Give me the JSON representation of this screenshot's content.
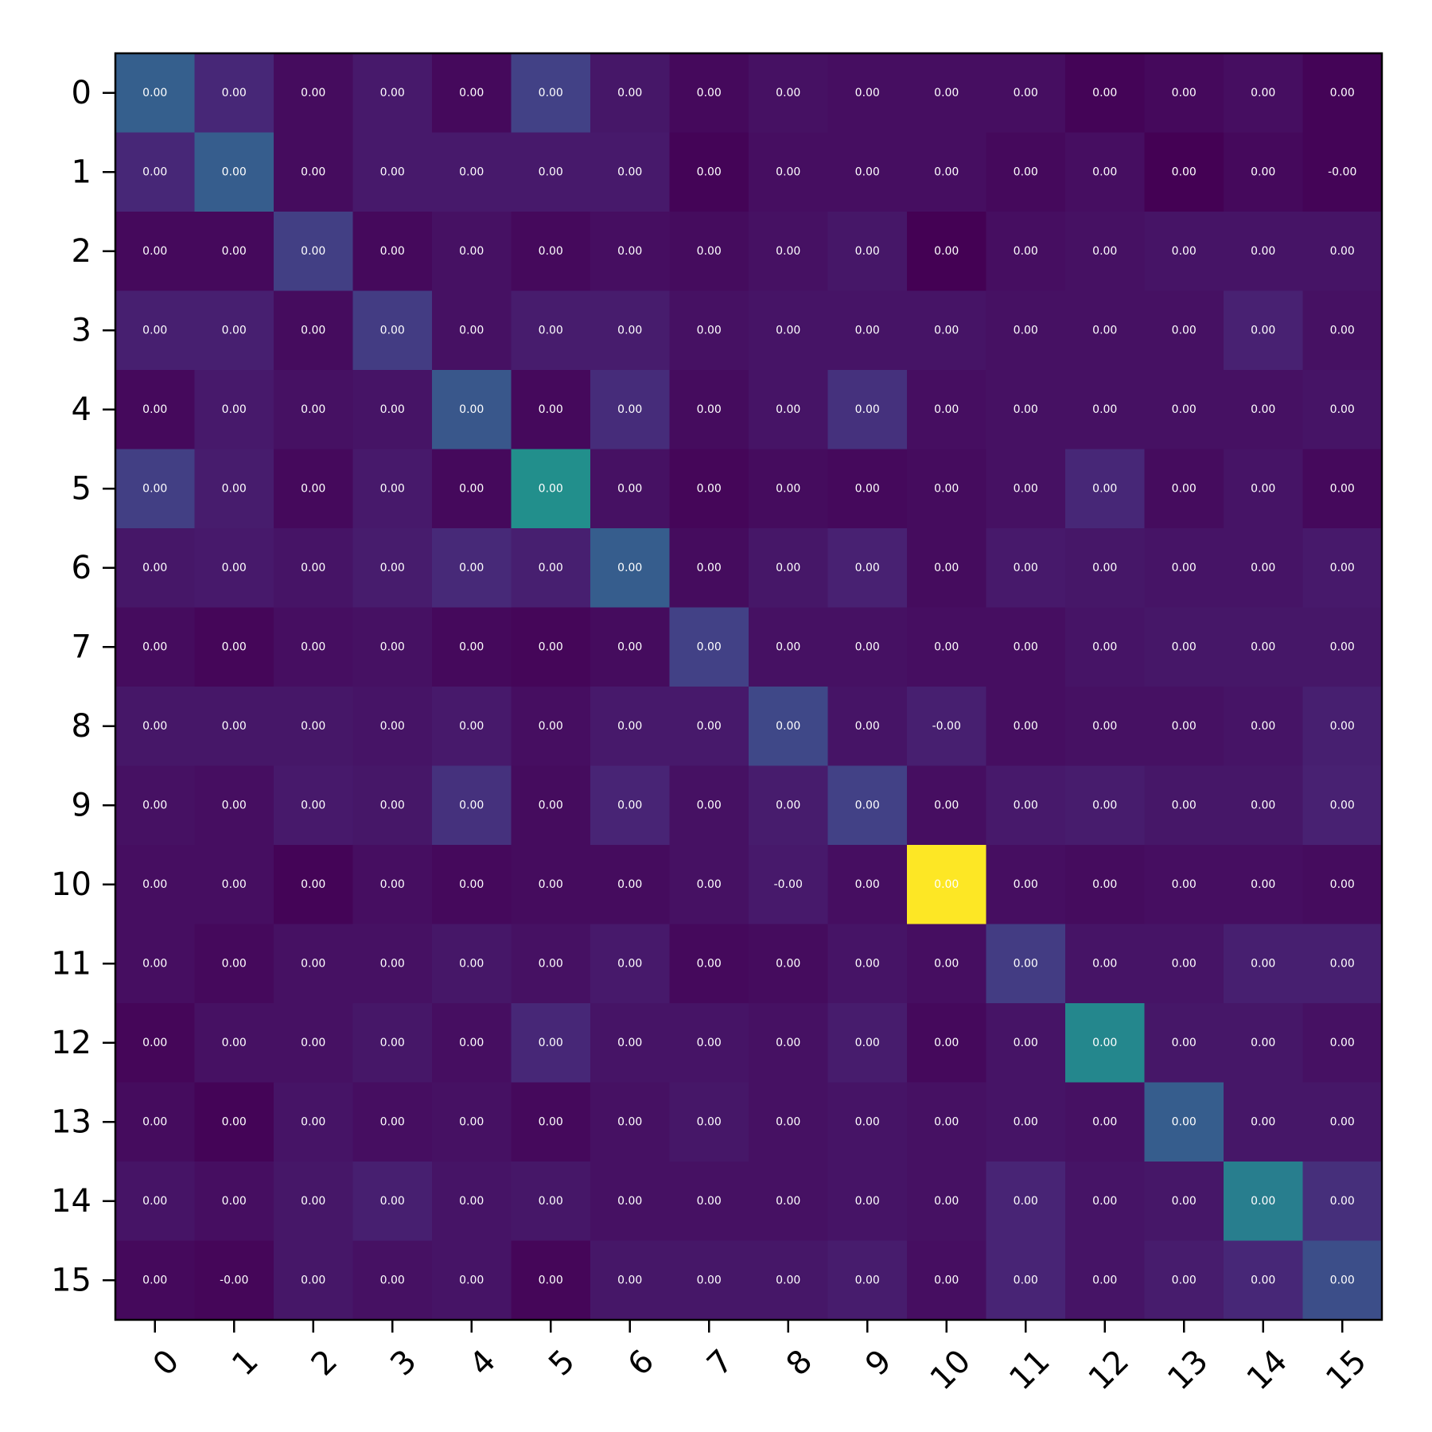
{
  "chart_data": {
    "type": "heatmap",
    "title": "",
    "xlabel": "",
    "ylabel": "",
    "x_categories": [
      "0",
      "1",
      "2",
      "3",
      "4",
      "5",
      "6",
      "7",
      "8",
      "9",
      "10",
      "11",
      "12",
      "13",
      "14",
      "15"
    ],
    "y_categories": [
      "0",
      "1",
      "2",
      "3",
      "4",
      "5",
      "6",
      "7",
      "8",
      "9",
      "10",
      "11",
      "12",
      "13",
      "14",
      "15"
    ],
    "colormap": "viridis",
    "grid": false,
    "value_range": [
      0,
      1
    ],
    "intensity": [
      [
        0.38,
        0.14,
        0.04,
        0.09,
        0.03,
        0.24,
        0.08,
        0.03,
        0.06,
        0.05,
        0.05,
        0.05,
        0.01,
        0.03,
        0.05,
        0.01
      ],
      [
        0.14,
        0.37,
        0.04,
        0.09,
        0.09,
        0.09,
        0.09,
        0.01,
        0.05,
        0.05,
        0.05,
        0.03,
        0.05,
        0.0,
        0.03,
        0.01
      ],
      [
        0.03,
        0.03,
        0.23,
        0.03,
        0.06,
        0.03,
        0.05,
        0.04,
        0.06,
        0.08,
        0.0,
        0.05,
        0.06,
        0.07,
        0.07,
        0.07
      ],
      [
        0.11,
        0.11,
        0.04,
        0.22,
        0.06,
        0.1,
        0.1,
        0.06,
        0.07,
        0.07,
        0.07,
        0.06,
        0.06,
        0.06,
        0.12,
        0.06
      ],
      [
        0.03,
        0.09,
        0.06,
        0.07,
        0.34,
        0.03,
        0.16,
        0.04,
        0.07,
        0.18,
        0.05,
        0.06,
        0.06,
        0.06,
        0.06,
        0.07
      ],
      [
        0.23,
        0.1,
        0.03,
        0.09,
        0.03,
        0.62,
        0.06,
        0.02,
        0.04,
        0.03,
        0.04,
        0.06,
        0.14,
        0.04,
        0.07,
        0.03
      ],
      [
        0.08,
        0.09,
        0.07,
        0.1,
        0.15,
        0.11,
        0.37,
        0.04,
        0.08,
        0.12,
        0.04,
        0.09,
        0.08,
        0.07,
        0.07,
        0.09
      ],
      [
        0.04,
        0.02,
        0.05,
        0.06,
        0.03,
        0.02,
        0.04,
        0.24,
        0.06,
        0.06,
        0.05,
        0.05,
        0.07,
        0.08,
        0.08,
        0.08
      ],
      [
        0.08,
        0.08,
        0.08,
        0.07,
        0.09,
        0.05,
        0.09,
        0.09,
        0.27,
        0.07,
        0.11,
        0.05,
        0.06,
        0.06,
        0.07,
        0.11
      ],
      [
        0.06,
        0.05,
        0.09,
        0.08,
        0.18,
        0.04,
        0.13,
        0.06,
        0.1,
        0.24,
        0.05,
        0.09,
        0.1,
        0.08,
        0.08,
        0.12
      ],
      [
        0.05,
        0.05,
        0.01,
        0.05,
        0.03,
        0.04,
        0.04,
        0.06,
        0.09,
        0.05,
        1.0,
        0.05,
        0.04,
        0.05,
        0.05,
        0.04
      ],
      [
        0.05,
        0.03,
        0.06,
        0.06,
        0.08,
        0.06,
        0.09,
        0.03,
        0.04,
        0.07,
        0.05,
        0.22,
        0.07,
        0.07,
        0.11,
        0.11
      ],
      [
        0.02,
        0.06,
        0.06,
        0.08,
        0.05,
        0.14,
        0.07,
        0.07,
        0.06,
        0.1,
        0.03,
        0.07,
        0.58,
        0.08,
        0.08,
        0.06
      ],
      [
        0.04,
        0.01,
        0.07,
        0.05,
        0.06,
        0.03,
        0.06,
        0.08,
        0.06,
        0.07,
        0.06,
        0.07,
        0.06,
        0.37,
        0.08,
        0.08
      ],
      [
        0.07,
        0.05,
        0.08,
        0.11,
        0.07,
        0.08,
        0.06,
        0.06,
        0.06,
        0.07,
        0.06,
        0.13,
        0.07,
        0.08,
        0.53,
        0.17
      ],
      [
        0.03,
        0.02,
        0.08,
        0.06,
        0.07,
        0.02,
        0.08,
        0.08,
        0.08,
        0.1,
        0.05,
        0.13,
        0.07,
        0.1,
        0.14,
        0.3
      ]
    ],
    "cell_labels": [
      [
        "0.00",
        "0.00",
        "0.00",
        "0.00",
        "0.00",
        "0.00",
        "0.00",
        "0.00",
        "0.00",
        "0.00",
        "0.00",
        "0.00",
        "0.00",
        "0.00",
        "0.00",
        "0.00"
      ],
      [
        "0.00",
        "0.00",
        "0.00",
        "0.00",
        "0.00",
        "0.00",
        "0.00",
        "0.00",
        "0.00",
        "0.00",
        "0.00",
        "0.00",
        "0.00",
        "0.00",
        "0.00",
        "-0.00"
      ],
      [
        "0.00",
        "0.00",
        "0.00",
        "0.00",
        "0.00",
        "0.00",
        "0.00",
        "0.00",
        "0.00",
        "0.00",
        "0.00",
        "0.00",
        "0.00",
        "0.00",
        "0.00",
        "0.00"
      ],
      [
        "0.00",
        "0.00",
        "0.00",
        "0.00",
        "0.00",
        "0.00",
        "0.00",
        "0.00",
        "0.00",
        "0.00",
        "0.00",
        "0.00",
        "0.00",
        "0.00",
        "0.00",
        "0.00"
      ],
      [
        "0.00",
        "0.00",
        "0.00",
        "0.00",
        "0.00",
        "0.00",
        "0.00",
        "0.00",
        "0.00",
        "0.00",
        "0.00",
        "0.00",
        "0.00",
        "0.00",
        "0.00",
        "0.00"
      ],
      [
        "0.00",
        "0.00",
        "0.00",
        "0.00",
        "0.00",
        "0.00",
        "0.00",
        "0.00",
        "0.00",
        "0.00",
        "0.00",
        "0.00",
        "0.00",
        "0.00",
        "0.00",
        "0.00"
      ],
      [
        "0.00",
        "0.00",
        "0.00",
        "0.00",
        "0.00",
        "0.00",
        "0.00",
        "0.00",
        "0.00",
        "0.00",
        "0.00",
        "0.00",
        "0.00",
        "0.00",
        "0.00",
        "0.00"
      ],
      [
        "0.00",
        "0.00",
        "0.00",
        "0.00",
        "0.00",
        "0.00",
        "0.00",
        "0.00",
        "0.00",
        "0.00",
        "0.00",
        "0.00",
        "0.00",
        "0.00",
        "0.00",
        "0.00"
      ],
      [
        "0.00",
        "0.00",
        "0.00",
        "0.00",
        "0.00",
        "0.00",
        "0.00",
        "0.00",
        "0.00",
        "0.00",
        "-0.00",
        "0.00",
        "0.00",
        "0.00",
        "0.00",
        "0.00"
      ],
      [
        "0.00",
        "0.00",
        "0.00",
        "0.00",
        "0.00",
        "0.00",
        "0.00",
        "0.00",
        "0.00",
        "0.00",
        "0.00",
        "0.00",
        "0.00",
        "0.00",
        "0.00",
        "0.00"
      ],
      [
        "0.00",
        "0.00",
        "0.00",
        "0.00",
        "0.00",
        "0.00",
        "0.00",
        "0.00",
        "-0.00",
        "0.00",
        "0.00",
        "0.00",
        "0.00",
        "0.00",
        "0.00",
        "0.00"
      ],
      [
        "0.00",
        "0.00",
        "0.00",
        "0.00",
        "0.00",
        "0.00",
        "0.00",
        "0.00",
        "0.00",
        "0.00",
        "0.00",
        "0.00",
        "0.00",
        "0.00",
        "0.00",
        "0.00"
      ],
      [
        "0.00",
        "0.00",
        "0.00",
        "0.00",
        "0.00",
        "0.00",
        "0.00",
        "0.00",
        "0.00",
        "0.00",
        "0.00",
        "0.00",
        "0.00",
        "0.00",
        "0.00",
        "0.00"
      ],
      [
        "0.00",
        "0.00",
        "0.00",
        "0.00",
        "0.00",
        "0.00",
        "0.00",
        "0.00",
        "0.00",
        "0.00",
        "0.00",
        "0.00",
        "0.00",
        "0.00",
        "0.00",
        "0.00"
      ],
      [
        "0.00",
        "0.00",
        "0.00",
        "0.00",
        "0.00",
        "0.00",
        "0.00",
        "0.00",
        "0.00",
        "0.00",
        "0.00",
        "0.00",
        "0.00",
        "0.00",
        "0.00",
        "0.00"
      ],
      [
        "0.00",
        "-0.00",
        "0.00",
        "0.00",
        "0.00",
        "0.00",
        "0.00",
        "0.00",
        "0.00",
        "0.00",
        "0.00",
        "0.00",
        "0.00",
        "0.00",
        "0.00",
        "0.00"
      ]
    ]
  }
}
